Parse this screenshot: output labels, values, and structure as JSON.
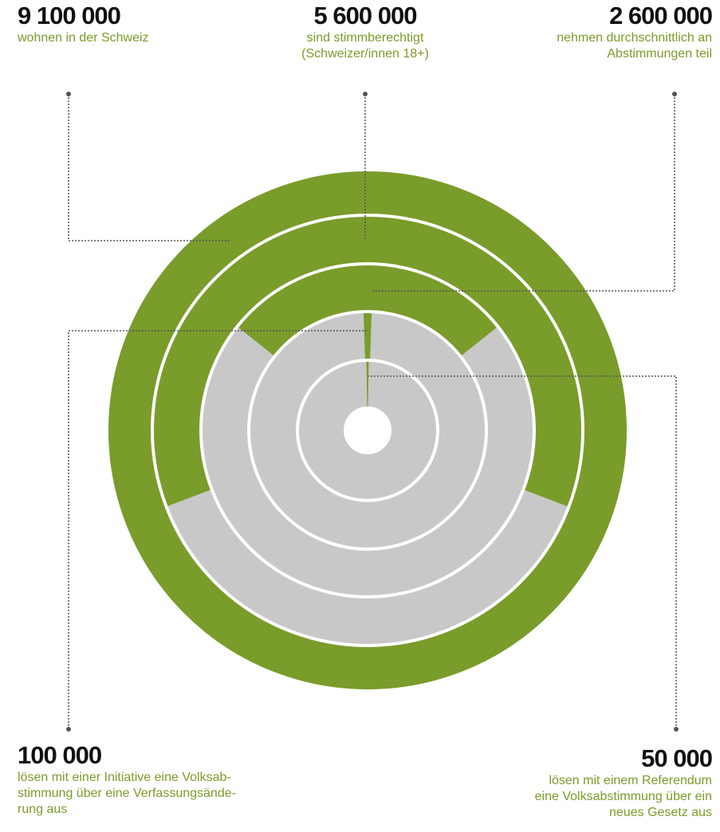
{
  "chart_data": {
    "type": "radial",
    "values": [
      9100000,
      5600000,
      2600000,
      100000,
      50000
    ],
    "value_labels": [
      "9 100 000",
      "5 600 000",
      "2 600 000",
      "100 000",
      "50 000"
    ],
    "descriptions": [
      [
        "wohnen in der Schweiz"
      ],
      [
        "sind stimmberechtigt",
        "(Schweizer/innen 18+)"
      ],
      [
        "nehmen durchschnittlich an",
        "Abstimmungen teil"
      ],
      [
        "lösen mit einer Initiative eine Volksab-",
        "stimmung über eine Verfassungsände-",
        "rung aus"
      ],
      [
        "lösen mit einem Referendum",
        "eine Volksabstimmung über ein",
        "neues Gesetz aus"
      ]
    ],
    "color": "#7a9c2a",
    "background_color": "#c8c8c8",
    "text_color": "#7a9c2a"
  }
}
